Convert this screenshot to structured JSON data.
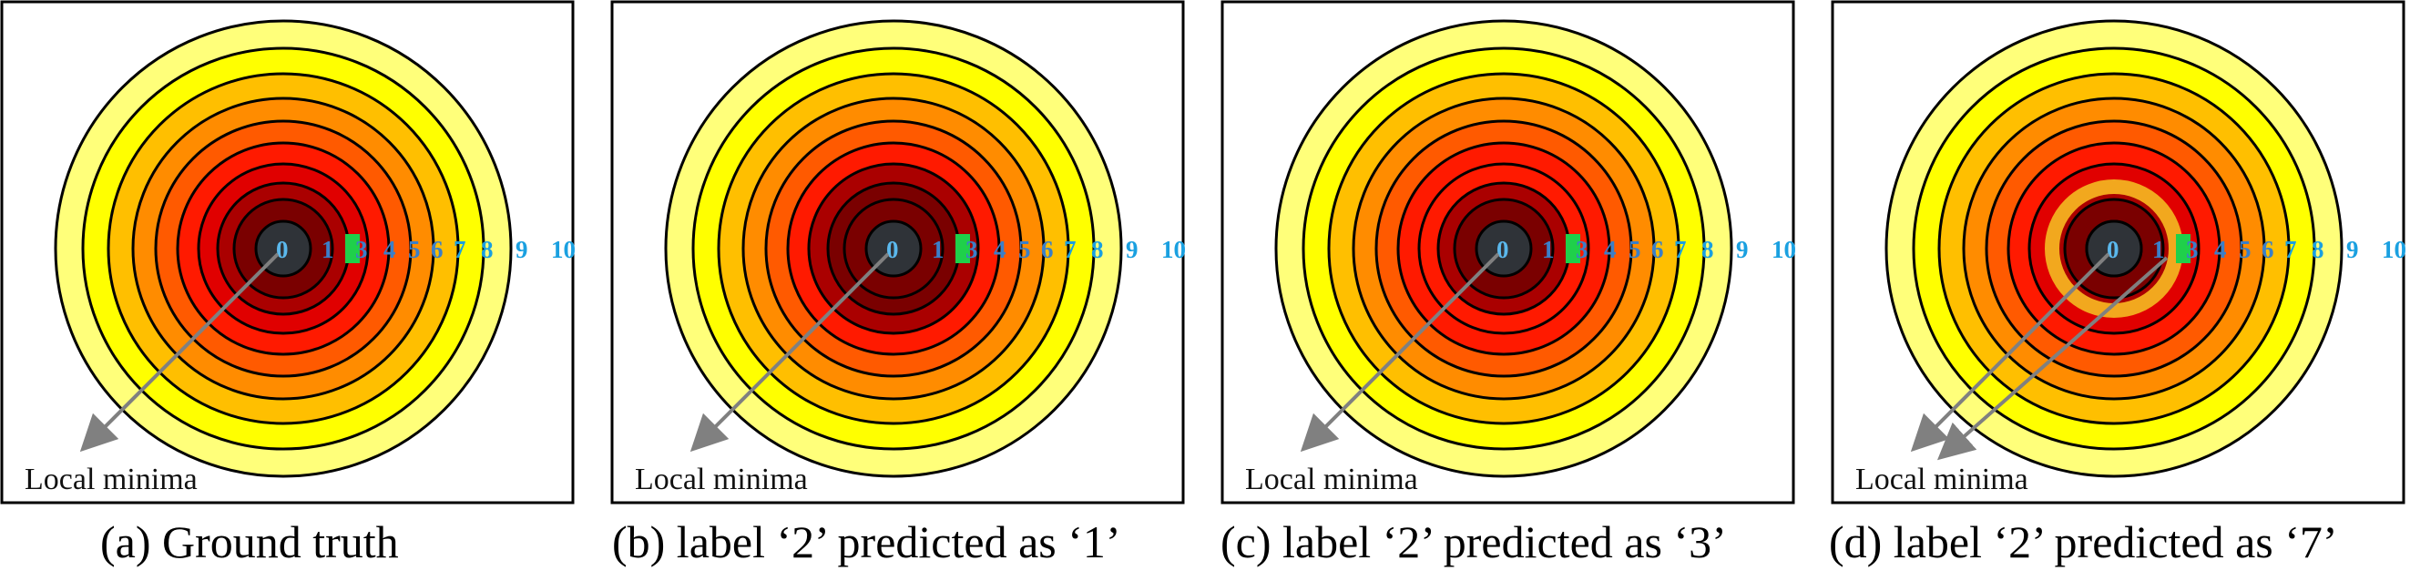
{
  "figure": {
    "panels": [
      {
        "id": "a",
        "caption": "(a) Ground truth",
        "annotation": "Local minima",
        "predicted_label": null,
        "ring_labels": [
          "0",
          "1",
          "3",
          "4",
          "5",
          "6",
          "7",
          "8",
          "9",
          "10"
        ]
      },
      {
        "id": "b",
        "caption": "(b) label ‘2’ predicted as ‘1’",
        "annotation": "Local minima",
        "predicted_label": 1,
        "ring_labels": [
          "0",
          "1",
          "3",
          "4",
          "5",
          "6",
          "7",
          "8",
          "9",
          "10"
        ]
      },
      {
        "id": "c",
        "caption": "(c) label ‘2’ predicted as ‘3’",
        "annotation": "Local minima",
        "predicted_label": 3,
        "ring_labels": [
          "0",
          "1",
          "3",
          "4",
          "5",
          "6",
          "7",
          "8",
          "9",
          "10"
        ]
      },
      {
        "id": "d",
        "caption": "(d) label ‘2’ predicted as ‘7’",
        "annotation": "Local minima",
        "predicted_label": 7,
        "ring_labels": [
          "0",
          "1",
          "3",
          "4",
          "5",
          "6",
          "7",
          "8",
          "9",
          "10"
        ]
      }
    ],
    "colors": {
      "center": "#2f3338",
      "label_0": "#5bb8ec",
      "label_near": "#3b7fc8",
      "label_far": "#1aa0e0",
      "marker": "#1fd04a",
      "highlight_ring": "#f2a81e",
      "arrow": "#808080"
    }
  }
}
